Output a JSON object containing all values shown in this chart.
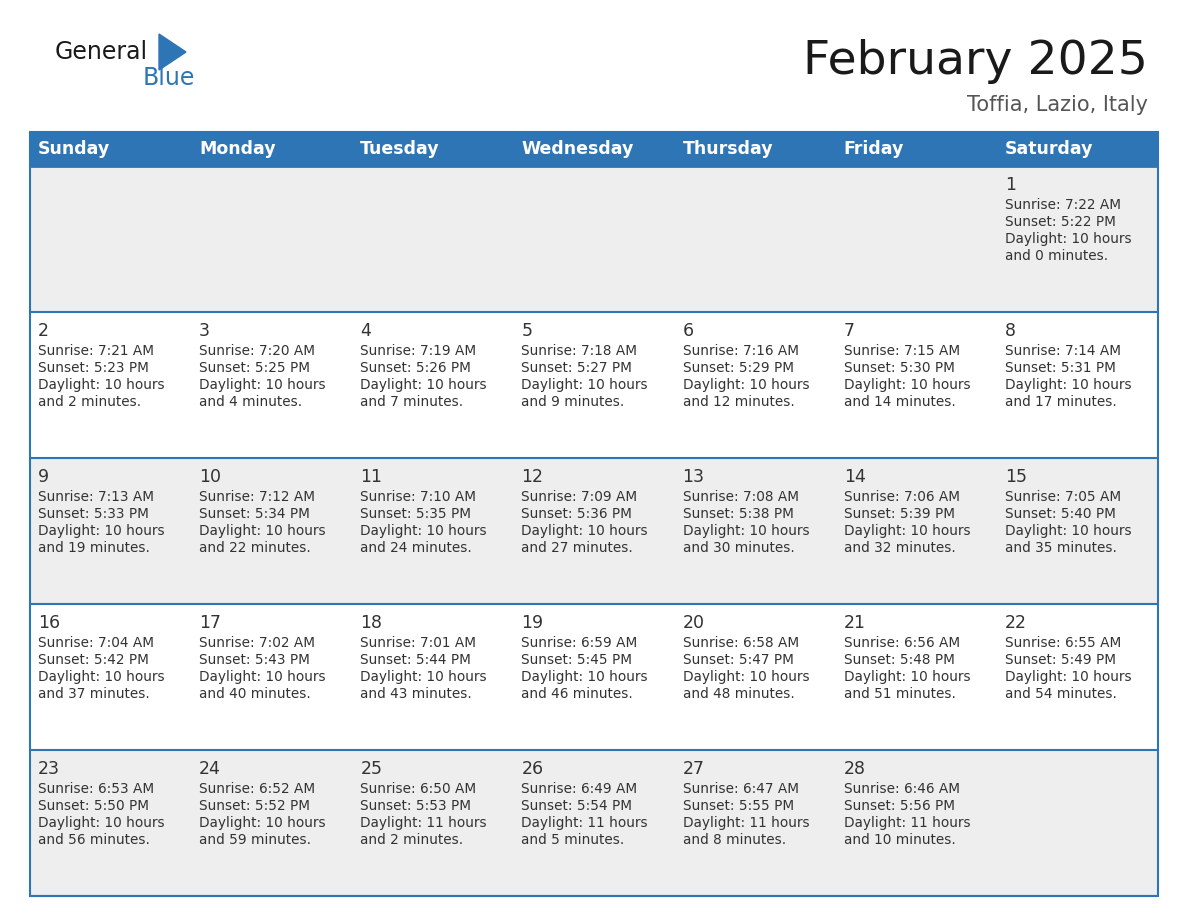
{
  "title": "February 2025",
  "subtitle": "Toffia, Lazio, Italy",
  "header_bg_color": "#2E75B6",
  "header_text_color": "#FFFFFF",
  "days_of_week": [
    "Sunday",
    "Monday",
    "Tuesday",
    "Wednesday",
    "Thursday",
    "Friday",
    "Saturday"
  ],
  "row_colors": [
    "#EEEEEE",
    "#FFFFFF",
    "#EEEEEE",
    "#FFFFFF",
    "#EEEEEE"
  ],
  "border_color": "#2E75B6",
  "text_color": "#333333",
  "day_num_color": "#333333",
  "title_color": "#1a1a1a",
  "subtitle_color": "#555555",
  "logo_general_color": "#1a1a1a",
  "logo_blue_color": "#2E75B6",
  "logo_triangle_color": "#2E75B6",
  "calendar_data": [
    [
      {
        "day": "",
        "info": ""
      },
      {
        "day": "",
        "info": ""
      },
      {
        "day": "",
        "info": ""
      },
      {
        "day": "",
        "info": ""
      },
      {
        "day": "",
        "info": ""
      },
      {
        "day": "",
        "info": ""
      },
      {
        "day": "1",
        "info": "Sunrise: 7:22 AM\nSunset: 5:22 PM\nDaylight: 10 hours\nand 0 minutes."
      }
    ],
    [
      {
        "day": "2",
        "info": "Sunrise: 7:21 AM\nSunset: 5:23 PM\nDaylight: 10 hours\nand 2 minutes."
      },
      {
        "day": "3",
        "info": "Sunrise: 7:20 AM\nSunset: 5:25 PM\nDaylight: 10 hours\nand 4 minutes."
      },
      {
        "day": "4",
        "info": "Sunrise: 7:19 AM\nSunset: 5:26 PM\nDaylight: 10 hours\nand 7 minutes."
      },
      {
        "day": "5",
        "info": "Sunrise: 7:18 AM\nSunset: 5:27 PM\nDaylight: 10 hours\nand 9 minutes."
      },
      {
        "day": "6",
        "info": "Sunrise: 7:16 AM\nSunset: 5:29 PM\nDaylight: 10 hours\nand 12 minutes."
      },
      {
        "day": "7",
        "info": "Sunrise: 7:15 AM\nSunset: 5:30 PM\nDaylight: 10 hours\nand 14 minutes."
      },
      {
        "day": "8",
        "info": "Sunrise: 7:14 AM\nSunset: 5:31 PM\nDaylight: 10 hours\nand 17 minutes."
      }
    ],
    [
      {
        "day": "9",
        "info": "Sunrise: 7:13 AM\nSunset: 5:33 PM\nDaylight: 10 hours\nand 19 minutes."
      },
      {
        "day": "10",
        "info": "Sunrise: 7:12 AM\nSunset: 5:34 PM\nDaylight: 10 hours\nand 22 minutes."
      },
      {
        "day": "11",
        "info": "Sunrise: 7:10 AM\nSunset: 5:35 PM\nDaylight: 10 hours\nand 24 minutes."
      },
      {
        "day": "12",
        "info": "Sunrise: 7:09 AM\nSunset: 5:36 PM\nDaylight: 10 hours\nand 27 minutes."
      },
      {
        "day": "13",
        "info": "Sunrise: 7:08 AM\nSunset: 5:38 PM\nDaylight: 10 hours\nand 30 minutes."
      },
      {
        "day": "14",
        "info": "Sunrise: 7:06 AM\nSunset: 5:39 PM\nDaylight: 10 hours\nand 32 minutes."
      },
      {
        "day": "15",
        "info": "Sunrise: 7:05 AM\nSunset: 5:40 PM\nDaylight: 10 hours\nand 35 minutes."
      }
    ],
    [
      {
        "day": "16",
        "info": "Sunrise: 7:04 AM\nSunset: 5:42 PM\nDaylight: 10 hours\nand 37 minutes."
      },
      {
        "day": "17",
        "info": "Sunrise: 7:02 AM\nSunset: 5:43 PM\nDaylight: 10 hours\nand 40 minutes."
      },
      {
        "day": "18",
        "info": "Sunrise: 7:01 AM\nSunset: 5:44 PM\nDaylight: 10 hours\nand 43 minutes."
      },
      {
        "day": "19",
        "info": "Sunrise: 6:59 AM\nSunset: 5:45 PM\nDaylight: 10 hours\nand 46 minutes."
      },
      {
        "day": "20",
        "info": "Sunrise: 6:58 AM\nSunset: 5:47 PM\nDaylight: 10 hours\nand 48 minutes."
      },
      {
        "day": "21",
        "info": "Sunrise: 6:56 AM\nSunset: 5:48 PM\nDaylight: 10 hours\nand 51 minutes."
      },
      {
        "day": "22",
        "info": "Sunrise: 6:55 AM\nSunset: 5:49 PM\nDaylight: 10 hours\nand 54 minutes."
      }
    ],
    [
      {
        "day": "23",
        "info": "Sunrise: 6:53 AM\nSunset: 5:50 PM\nDaylight: 10 hours\nand 56 minutes."
      },
      {
        "day": "24",
        "info": "Sunrise: 6:52 AM\nSunset: 5:52 PM\nDaylight: 10 hours\nand 59 minutes."
      },
      {
        "day": "25",
        "info": "Sunrise: 6:50 AM\nSunset: 5:53 PM\nDaylight: 11 hours\nand 2 minutes."
      },
      {
        "day": "26",
        "info": "Sunrise: 6:49 AM\nSunset: 5:54 PM\nDaylight: 11 hours\nand 5 minutes."
      },
      {
        "day": "27",
        "info": "Sunrise: 6:47 AM\nSunset: 5:55 PM\nDaylight: 11 hours\nand 8 minutes."
      },
      {
        "day": "28",
        "info": "Sunrise: 6:46 AM\nSunset: 5:56 PM\nDaylight: 11 hours\nand 10 minutes."
      },
      {
        "day": "",
        "info": ""
      }
    ]
  ]
}
